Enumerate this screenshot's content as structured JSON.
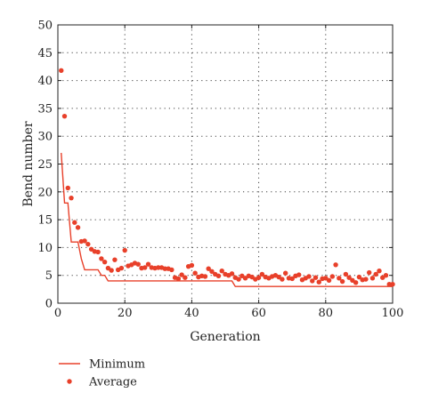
{
  "chart_data": {
    "type": "line",
    "xlabel": "Generation",
    "ylabel": "Bend number",
    "xlim": [
      0,
      100
    ],
    "ylim": [
      0,
      50
    ],
    "xticks": [
      0,
      20,
      40,
      60,
      80,
      100
    ],
    "yticks": [
      0,
      5,
      10,
      15,
      20,
      25,
      30,
      35,
      40,
      45,
      50
    ],
    "grid": true,
    "legend_position": "bottom-left, below plot",
    "series": [
      {
        "name": "Minimum",
        "type": "line",
        "color": "#e8402a",
        "x": [
          1,
          2,
          3,
          4,
          5,
          6,
          7,
          8,
          9,
          10,
          11,
          12,
          13,
          14,
          15,
          16,
          17,
          18,
          19,
          20,
          21,
          22,
          23,
          24,
          25,
          26,
          27,
          28,
          29,
          30,
          31,
          32,
          33,
          34,
          35,
          36,
          37,
          38,
          39,
          40,
          41,
          42,
          43,
          44,
          45,
          46,
          47,
          48,
          49,
          50,
          51,
          52,
          53,
          54,
          55,
          56,
          57,
          58,
          59,
          60,
          61,
          62,
          63,
          64,
          65,
          66,
          67,
          68,
          69,
          70,
          71,
          72,
          73,
          74,
          75,
          76,
          77,
          78,
          79,
          80,
          81,
          82,
          83,
          84,
          85,
          86,
          87,
          88,
          89,
          90,
          91,
          92,
          93,
          94,
          95,
          96,
          97,
          98,
          99,
          100
        ],
        "values": [
          27,
          18,
          18,
          11,
          11,
          11,
          8,
          6,
          6,
          6,
          6,
          6,
          5,
          5,
          4,
          4,
          4,
          4,
          4,
          4,
          4,
          4,
          4,
          4,
          4,
          4,
          4,
          4,
          4,
          4,
          4,
          4,
          4,
          4,
          4,
          4,
          4,
          4,
          4,
          4,
          4,
          4,
          4,
          4,
          4,
          4,
          4,
          4,
          4,
          4,
          4,
          4,
          3,
          3,
          3,
          3,
          3,
          3,
          3,
          3,
          3,
          3,
          3,
          3,
          3,
          3,
          3,
          3,
          3,
          3,
          3,
          3,
          3,
          3,
          3,
          3,
          3,
          3,
          3,
          3,
          3,
          3,
          3,
          3,
          3,
          3,
          3,
          3,
          3,
          3,
          3,
          3,
          3,
          3,
          3,
          3,
          3,
          3,
          3,
          3
        ]
      },
      {
        "name": "Average",
        "type": "scatter",
        "color": "#e8402a",
        "x": [
          1,
          2,
          3,
          4,
          5,
          6,
          7,
          8,
          9,
          10,
          11,
          12,
          13,
          14,
          15,
          16,
          17,
          18,
          19,
          20,
          21,
          22,
          23,
          24,
          25,
          26,
          27,
          28,
          29,
          30,
          31,
          32,
          33,
          34,
          35,
          36,
          37,
          38,
          39,
          40,
          41,
          42,
          43,
          44,
          45,
          46,
          47,
          48,
          49,
          50,
          51,
          52,
          53,
          54,
          55,
          56,
          57,
          58,
          59,
          60,
          61,
          62,
          63,
          64,
          65,
          66,
          67,
          68,
          69,
          70,
          71,
          72,
          73,
          74,
          75,
          76,
          77,
          78,
          79,
          80,
          81,
          82,
          83,
          84,
          85,
          86,
          87,
          88,
          89,
          90,
          91,
          92,
          93,
          94,
          95,
          96,
          97,
          98,
          99,
          100
        ],
        "values": [
          41.8,
          33.6,
          20.7,
          18.9,
          14.5,
          13.6,
          11.1,
          11.2,
          10.6,
          9.7,
          9.3,
          9.2,
          8.0,
          7.4,
          6.3,
          5.9,
          7.8,
          6.0,
          6.3,
          9.5,
          6.7,
          6.9,
          7.2,
          7.0,
          6.3,
          6.4,
          7.0,
          6.4,
          6.3,
          6.4,
          6.4,
          6.2,
          6.2,
          6.0,
          4.6,
          4.4,
          5.1,
          4.6,
          6.6,
          6.8,
          5.4,
          4.7,
          4.9,
          4.8,
          6.2,
          5.7,
          5.2,
          4.9,
          5.8,
          5.2,
          5.0,
          5.3,
          4.6,
          4.3,
          4.9,
          4.5,
          4.9,
          4.7,
          4.3,
          4.6,
          5.2,
          4.7,
          4.5,
          4.8,
          5.0,
          4.7,
          4.3,
          5.4,
          4.5,
          4.4,
          4.9,
          5.1,
          4.2,
          4.5,
          4.8,
          4.0,
          4.6,
          3.8,
          4.4,
          4.5,
          4.1,
          4.8,
          6.9,
          4.5,
          3.9,
          5.2,
          4.6,
          4.1,
          3.7,
          4.7,
          4.2,
          4.3,
          5.5,
          4.5,
          5.2,
          5.8,
          4.6,
          5.0,
          3.4,
          3.4
        ]
      }
    ]
  }
}
